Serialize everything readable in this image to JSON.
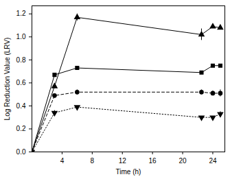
{
  "chart_data": {
    "type": "line",
    "x_label": "Time (h)",
    "y_label": "Log Reduction Value (LRV)",
    "xlim": [
      0,
      25.6
    ],
    "xticks": [
      4,
      8,
      12,
      16,
      20,
      24
    ],
    "ylim": [
      0,
      1.27
    ],
    "yticks": [
      {
        "value": 0,
        "label": "0.0"
      },
      {
        "value": 0.2,
        "label": "0.2"
      },
      {
        "value": 0.4,
        "label": "0.4"
      },
      {
        "value": 0.6,
        "label": "0.6"
      },
      {
        "value": 0.8,
        "label": "0.8"
      },
      {
        "value": 1.0,
        "label": "1.0"
      },
      {
        "value": 1.2,
        "label": "1.2"
      }
    ],
    "grid": false,
    "x": [
      0,
      3,
      6,
      22.5,
      24,
      25
    ],
    "series": [
      {
        "color": "#000000",
        "marker": "triangle",
        "line_style": "solid",
        "values": [
          0,
          0.57,
          1.17,
          1.02,
          1.09,
          1.08
        ],
        "errors": [
          null,
          null,
          0.03,
          0.05,
          null,
          null
        ]
      },
      {
        "color": "#000000",
        "marker": "square",
        "line_style": "solid",
        "values": [
          0,
          0.67,
          0.73,
          0.69,
          0.75,
          0.75
        ],
        "errors": [
          null,
          null,
          null,
          null,
          null,
          null
        ]
      },
      {
        "color": "#000000",
        "marker": "circle",
        "line_style": "dashed",
        "values": [
          0,
          0.49,
          0.52,
          0.52,
          0.51,
          0.51
        ],
        "errors": [
          null,
          null,
          0.02,
          0.02,
          0.02,
          0.03
        ]
      },
      {
        "color": "#000000",
        "marker": "triangle-down",
        "line_style": "dotted",
        "values": [
          0,
          0.34,
          0.39,
          0.3,
          0.3,
          0.33
        ],
        "errors": [
          null,
          0.02,
          null,
          null,
          null,
          0.02
        ]
      }
    ]
  }
}
